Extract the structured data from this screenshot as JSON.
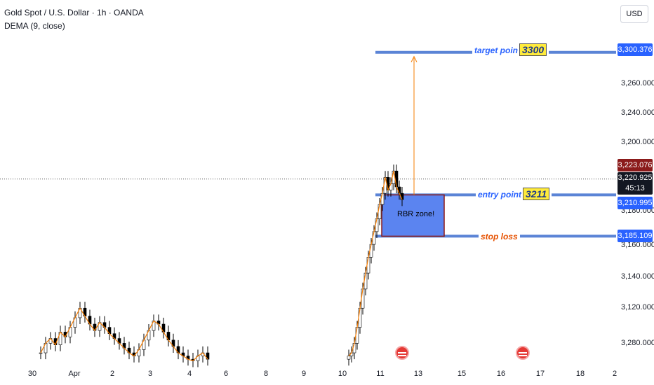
{
  "header": {
    "title": "Gold Spot / U.S. Dollar · 1h · OANDA",
    "indicator": "DEMA (9, close)",
    "currency": "USD"
  },
  "price_labels": {
    "target": "3,300.376",
    "high": "3,223.076",
    "current": "3,220.925",
    "countdown": "45:13",
    "entry": "3,210.995",
    "stop": "3,185.109"
  },
  "annotations": {
    "target_text": "target poin",
    "target_value": "3300",
    "entry_text": "entry point",
    "entry_value": "3211",
    "stop_text": "stop loss",
    "zone_text": "RBR zone!"
  },
  "colors": {
    "bull": "#ffffff",
    "bear": "#000000",
    "dema": "#f57c00",
    "level_line": "#5b84d6",
    "zone_fill": "#5b84f0",
    "zone_border": "#8b1a1a",
    "arrow": "#f57c00"
  },
  "events": [
    {
      "icon": "us-flag-icon"
    },
    {
      "icon": "us-flag-icon"
    }
  ],
  "chart_data": {
    "type": "candlestick",
    "y_ticks": [
      "3,120.000",
      "3,140.000",
      "3,160.000",
      "3,180.000",
      "3,200.000",
      "3,240.000",
      "3,260.000",
      "3,280.000"
    ],
    "x_ticks": [
      "30",
      "Apr",
      "2",
      "3",
      "4",
      "6",
      "8",
      "9",
      "10",
      "11",
      "13",
      "15",
      "16",
      "17",
      "18",
      "2"
    ],
    "ylim": [
      3105,
      3320
    ],
    "levels": {
      "target": 3300.376,
      "entry": 3210.995,
      "stop": 3185.109,
      "current": 3220.925,
      "high": 3223.076
    },
    "zone": {
      "low": 3185.109,
      "high": 3210.995
    }
  }
}
